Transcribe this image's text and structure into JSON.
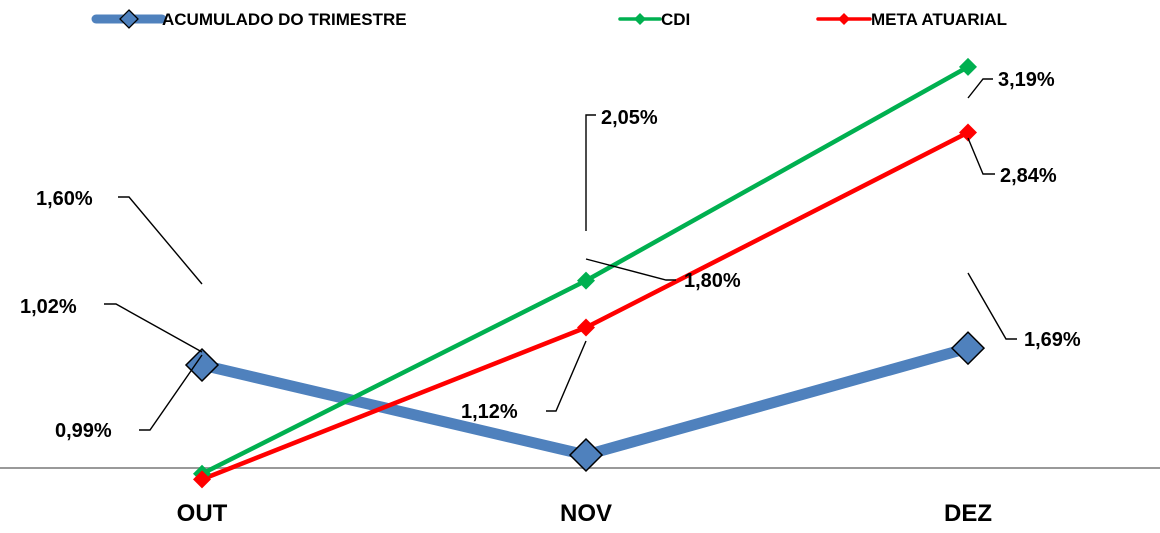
{
  "chart_data": {
    "type": "line",
    "categories": [
      "OUT",
      "NOV",
      "DEZ"
    ],
    "series": [
      {
        "name": "ACUMULADO DO TRIMESTRE",
        "values": [
          1.6,
          1.12,
          1.69
        ],
        "labels": [
          "1,60%",
          "1,12%",
          "1,69%"
        ],
        "color": "#4f81bd",
        "marker": "diamond"
      },
      {
        "name": "CDI",
        "values": [
          1.02,
          2.05,
          3.19
        ],
        "labels": [
          "1,02%",
          "2,05%",
          "3,19%"
        ],
        "color": "#00b050",
        "marker": "diamond"
      },
      {
        "name": "META ATUARIAL",
        "values": [
          0.99,
          1.8,
          2.84
        ],
        "labels": [
          "0,99%",
          "1,80%",
          "2,84%"
        ],
        "color": "#ff0000",
        "marker": "diamond"
      }
    ],
    "legend_position": "top",
    "grid": false,
    "ylim": [
      0,
      4
    ]
  }
}
